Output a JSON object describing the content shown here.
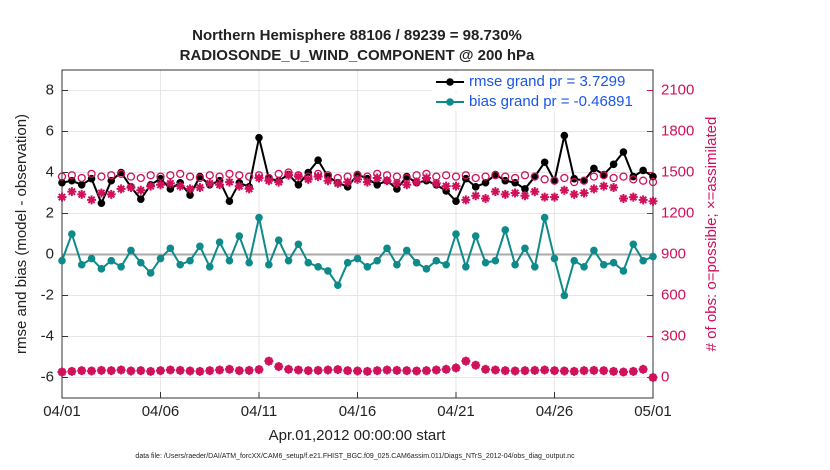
{
  "chart_data": {
    "type": "line",
    "title": "Northern Hemisphere 88106 / 89239 = 98.730%",
    "subtitle": "RADIOSONDE_U_WIND_COMPONENT @ 200 hPa",
    "xlabel": "Apr.01,2012 00:00:00 start",
    "ylabel": "rmse and bias (model - observation)",
    "y2label": "# of obs: o=possible; ×=assimilated",
    "note": "data file: /Users/raeder/DAI/ATM_forcXX/CAM6_setup/f.e21.FHIST_BGC.f09_025.CAM6assim.011/Diags_NTrS_2012-04/obs_diag_output.nc",
    "x": [
      0,
      0.5,
      1,
      1.5,
      2,
      2.5,
      3,
      3.5,
      4,
      4.5,
      5,
      5.5,
      6,
      6.5,
      7,
      7.5,
      8,
      8.5,
      9,
      9.5,
      10,
      10.5,
      11,
      11.5,
      12,
      12.5,
      13,
      13.5,
      14,
      14.5,
      15,
      15.5,
      16,
      16.5,
      17,
      17.5,
      18,
      18.5,
      19,
      19.5,
      20,
      20.5,
      21,
      21.5,
      22,
      22.5,
      23,
      23.5,
      24,
      24.5,
      25,
      25.5,
      26,
      26.5,
      27,
      27.5,
      28,
      28.5,
      29,
      29.5,
      30
    ],
    "xlim": [
      0,
      30
    ],
    "xticks": [
      {
        "value": 0,
        "label": "04/01"
      },
      {
        "value": 5,
        "label": "04/06"
      },
      {
        "value": 10,
        "label": "04/11"
      },
      {
        "value": 15,
        "label": "04/16"
      },
      {
        "value": 20,
        "label": "04/21"
      },
      {
        "value": 25,
        "label": "04/26"
      },
      {
        "value": 30,
        "label": "05/01"
      }
    ],
    "ylim": [
      -7,
      9
    ],
    "yticks": [
      -6,
      -4,
      -2,
      0,
      2,
      4,
      6,
      8
    ],
    "y2lim": [
      -150,
      2250
    ],
    "y2ticks": [
      0,
      300,
      600,
      900,
      1200,
      1500,
      1800,
      2100
    ],
    "grid": true,
    "legend": "upper right",
    "y2color": "#d0105a",
    "series": [
      {
        "name": "rmse grand pr = 3.7299",
        "color": "#000000",
        "marker": "dot-line",
        "values": [
          3.5,
          3.6,
          3.4,
          3.7,
          2.5,
          3.6,
          4.0,
          3.3,
          2.7,
          3.4,
          3.7,
          3.2,
          3.5,
          2.9,
          3.8,
          3.4,
          3.6,
          2.6,
          3.5,
          3.3,
          5.7,
          3.7,
          3.6,
          3.9,
          3.4,
          4.0,
          4.6,
          3.8,
          3.5,
          3.3,
          3.9,
          3.7,
          3.4,
          3.6,
          3.2,
          3.8,
          3.5,
          3.6,
          3.4,
          3.1,
          2.6,
          3.7,
          3.3,
          3.5,
          3.9,
          3.6,
          3.5,
          3.2,
          3.8,
          4.5,
          3.6,
          5.8,
          3.7,
          3.6,
          4.2,
          3.9,
          4.4,
          5.0,
          3.8,
          4.1,
          3.8
        ]
      },
      {
        "name": "bias grand pr = -0.46891",
        "color": "#0e8a8a",
        "marker": "dot-line",
        "values": [
          -0.3,
          1.0,
          -0.5,
          -0.2,
          -0.7,
          -0.3,
          -0.6,
          0.2,
          -0.4,
          -0.9,
          -0.2,
          0.3,
          -0.5,
          -0.3,
          0.4,
          -0.6,
          0.6,
          -0.3,
          0.9,
          -0.4,
          1.8,
          -0.5,
          0.7,
          -0.3,
          0.5,
          -0.4,
          -0.6,
          -0.8,
          -1.5,
          -0.4,
          -0.2,
          -0.6,
          -0.3,
          0.3,
          -0.5,
          0.2,
          -0.4,
          -0.7,
          -0.3,
          -0.5,
          1.0,
          -0.6,
          0.9,
          -0.4,
          -0.3,
          1.2,
          -0.5,
          0.3,
          -0.6,
          1.8,
          -0.2,
          -2.0,
          -0.3,
          -0.6,
          0.2,
          -0.5,
          -0.4,
          -0.8,
          0.5,
          -0.3,
          -0.1
        ]
      },
      {
        "color": "#d0105a",
        "marker": "circle",
        "axis": "y2",
        "values": [
          1470,
          1480,
          1460,
          1490,
          1470,
          1480,
          1490,
          1470,
          1460,
          1480,
          1470,
          1480,
          1490,
          1470,
          1460,
          1480,
          1470,
          1490,
          1480,
          1470,
          1480,
          1460,
          1490,
          1500,
          1480,
          1470,
          1490,
          1480,
          1460,
          1470,
          1480,
          1470,
          1490,
          1480,
          1470,
          1460,
          1480,
          1490,
          1470,
          1480,
          1470,
          1480,
          1460,
          1470,
          1480,
          1470,
          1460,
          1480,
          1470,
          1450,
          1440,
          1460,
          1430,
          1440,
          1470,
          1480,
          1460,
          1470,
          1450,
          1440,
          1430
        ]
      },
      {
        "color": "#d0105a",
        "marker": "star",
        "axis": "y2",
        "values": [
          1320,
          1360,
          1340,
          1300,
          1350,
          1340,
          1380,
          1390,
          1370,
          1400,
          1410,
          1420,
          1400,
          1380,
          1390,
          1420,
          1410,
          1430,
          1400,
          1380,
          1460,
          1440,
          1430,
          1480,
          1470,
          1450,
          1470,
          1440,
          1420,
          1430,
          1450,
          1430,
          1460,
          1440,
          1420,
          1410,
          1430,
          1460,
          1420,
          1400,
          1400,
          1300,
          1330,
          1310,
          1360,
          1340,
          1350,
          1330,
          1360,
          1320,
          1320,
          1370,
          1340,
          1350,
          1380,
          1400,
          1390,
          1310,
          1320,
          1300,
          1290
        ]
      },
      {
        "color": "#d0105a",
        "marker": "circle",
        "axis": "y2",
        "values": [
          40,
          45,
          50,
          48,
          52,
          50,
          55,
          48,
          50,
          45,
          50,
          55,
          52,
          48,
          45,
          50,
          55,
          60,
          50,
          52,
          58,
          120,
          80,
          60,
          55,
          50,
          52,
          55,
          58,
          50,
          48,
          45,
          50,
          55,
          52,
          50,
          48,
          50,
          55,
          60,
          70,
          120,
          90,
          60,
          55,
          50,
          48,
          50,
          52,
          55,
          50,
          48,
          45,
          50,
          52,
          50,
          45,
          40,
          45,
          60,
          0
        ]
      },
      {
        "color": "#d0105a",
        "marker": "star",
        "axis": "y2",
        "values": [
          40,
          45,
          50,
          48,
          52,
          50,
          55,
          48,
          50,
          45,
          50,
          55,
          52,
          48,
          45,
          50,
          55,
          60,
          50,
          52,
          58,
          120,
          80,
          60,
          55,
          50,
          52,
          55,
          58,
          50,
          48,
          45,
          50,
          55,
          52,
          50,
          48,
          50,
          55,
          60,
          70,
          120,
          90,
          60,
          55,
          50,
          48,
          50,
          52,
          55,
          50,
          48,
          45,
          50,
          52,
          50,
          45,
          40,
          45,
          60,
          0
        ]
      }
    ]
  }
}
